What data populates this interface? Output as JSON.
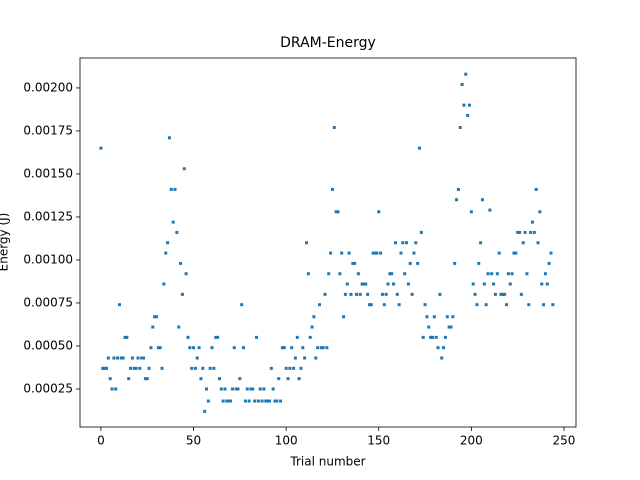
{
  "chart_data": {
    "type": "scatter",
    "title": "DRAM-Energy",
    "x_label": "Trial number",
    "y_label": "Energy (J)",
    "color": "#1f77b4",
    "xlim": [
      -11.3,
      256.5
    ],
    "ylim": [
      2.9e-05,
      0.002174
    ],
    "xticks": [
      0,
      50,
      100,
      150,
      200,
      250
    ],
    "yticks": [
      {
        "value": 0.00025,
        "label": "0.00025"
      },
      {
        "value": 0.0005,
        "label": "0.00050"
      },
      {
        "value": 0.00075,
        "label": "0.00075"
      },
      {
        "value": 0.001,
        "label": "0.00100"
      },
      {
        "value": 0.00125,
        "label": "0.00125"
      },
      {
        "value": 0.0015,
        "label": "0.00150"
      },
      {
        "value": 0.00175,
        "label": "0.00175"
      },
      {
        "value": 0.002,
        "label": "0.00200"
      }
    ],
    "x": [
      0,
      1,
      2,
      3,
      4,
      5,
      6,
      7,
      8,
      9,
      10,
      11,
      12,
      13,
      14,
      15,
      16,
      17,
      18,
      19,
      20,
      21,
      22,
      23,
      24,
      25,
      26,
      27,
      28,
      29,
      30,
      31,
      32,
      33,
      34,
      35,
      36,
      37,
      38,
      39,
      40,
      41,
      42,
      43,
      44,
      45,
      46,
      47,
      48,
      49,
      50,
      51,
      52,
      53,
      54,
      55,
      56,
      57,
      58,
      59,
      60,
      61,
      62,
      63,
      64,
      65,
      66,
      67,
      68,
      69,
      70,
      71,
      72,
      73,
      74,
      75,
      76,
      77,
      78,
      79,
      80,
      81,
      82,
      83,
      84,
      85,
      86,
      87,
      88,
      89,
      90,
      91,
      92,
      93,
      94,
      95,
      96,
      97,
      98,
      99,
      100,
      101,
      102,
      103,
      104,
      105,
      106,
      107,
      108,
      109,
      110,
      111,
      112,
      113,
      114,
      115,
      116,
      117,
      118,
      119,
      120,
      121,
      122,
      123,
      124,
      125,
      126,
      127,
      128,
      129,
      130,
      131,
      132,
      133,
      134,
      135,
      136,
      137,
      138,
      139,
      140,
      141,
      142,
      143,
      144,
      145,
      146,
      147,
      148,
      149,
      150,
      151,
      152,
      153,
      154,
      155,
      156,
      157,
      158,
      159,
      160,
      161,
      162,
      163,
      164,
      165,
      166,
      167,
      168,
      169,
      170,
      171,
      172,
      173,
      174,
      175,
      176,
      177,
      178,
      179,
      180,
      181,
      182,
      183,
      184,
      185,
      186,
      187,
      188,
      189,
      190,
      191,
      192,
      193,
      194,
      195,
      196,
      197,
      198,
      199,
      200,
      201,
      202,
      203,
      204,
      205,
      206,
      207,
      208,
      209,
      210,
      211,
      212,
      213,
      214,
      215,
      216,
      217,
      218,
      219,
      220,
      221,
      222,
      223,
      224,
      225,
      226,
      227,
      228,
      229,
      230,
      231,
      232,
      233,
      234,
      235,
      236,
      237,
      238,
      239,
      240,
      241,
      242,
      243,
      244
    ],
    "values": [
      0.00165,
      0.00037,
      0.00037,
      0.00037,
      0.00043,
      0.00031,
      0.00025,
      0.00043,
      0.00025,
      0.00043,
      0.00074,
      0.00043,
      0.00043,
      0.00055,
      0.00055,
      0.00031,
      0.00037,
      0.00043,
      0.00037,
      0.00037,
      0.00043,
      0.00037,
      0.00043,
      0.00043,
      0.00031,
      0.00031,
      0.00037,
      0.00049,
      0.00061,
      0.00067,
      0.00067,
      0.00049,
      0.00049,
      0.00037,
      0.00086,
      0.00104,
      0.0011,
      0.00171,
      0.00141,
      0.00122,
      0.00141,
      0.00116,
      0.00061,
      0.00098,
      0.0008,
      0.00153,
      0.00092,
      0.00055,
      0.00049,
      0.00037,
      0.00049,
      0.00037,
      0.00043,
      0.00049,
      0.00031,
      0.00037,
      0.00012,
      0.00025,
      0.00018,
      0.00037,
      0.00049,
      0.00037,
      0.00055,
      0.00055,
      0.00031,
      0.00025,
      0.00018,
      0.00025,
      0.00018,
      0.00018,
      0.00018,
      0.00025,
      0.00049,
      0.00025,
      0.00025,
      0.00031,
      0.00074,
      0.00049,
      0.00018,
      0.00025,
      0.00018,
      0.00025,
      0.00025,
      0.00018,
      0.00055,
      0.00018,
      0.00025,
      0.00018,
      0.00025,
      0.00018,
      0.00018,
      0.00018,
      0.00037,
      0.00025,
      0.00018,
      0.00018,
      0.00031,
      0.00018,
      0.00049,
      0.00049,
      0.00037,
      0.00031,
      0.00037,
      0.00049,
      0.00037,
      0.00043,
      0.00055,
      0.00031,
      0.00037,
      0.00049,
      0.00043,
      0.0011,
      0.00092,
      0.00055,
      0.00061,
      0.00067,
      0.00043,
      0.00049,
      0.00074,
      0.00049,
      0.00049,
      0.0008,
      0.00049,
      0.00092,
      0.00104,
      0.00141,
      0.00177,
      0.00128,
      0.00128,
      0.00092,
      0.00104,
      0.00067,
      0.0008,
      0.00086,
      0.00104,
      0.0008,
      0.00098,
      0.00098,
      0.0008,
      0.00092,
      0.0008,
      0.00086,
      0.00086,
      0.00086,
      0.0008,
      0.00074,
      0.00074,
      0.00104,
      0.00104,
      0.00104,
      0.00128,
      0.00104,
      0.0008,
      0.00074,
      0.0008,
      0.00086,
      0.00092,
      0.00092,
      0.00086,
      0.0011,
      0.0008,
      0.00074,
      0.00104,
      0.0011,
      0.00092,
      0.0011,
      0.00086,
      0.00098,
      0.0008,
      0.00104,
      0.0011,
      0.00098,
      0.00165,
      0.00116,
      0.00055,
      0.00074,
      0.00067,
      0.00061,
      0.00055,
      0.00055,
      0.00067,
      0.00055,
      0.00049,
      0.0008,
      0.00043,
      0.00049,
      0.00055,
      0.00067,
      0.00061,
      0.00061,
      0.00067,
      0.00098,
      0.00135,
      0.00141,
      0.00177,
      0.00202,
      0.0019,
      0.00208,
      0.00184,
      0.0019,
      0.00128,
      0.00086,
      0.0008,
      0.00074,
      0.00098,
      0.0011,
      0.00135,
      0.00086,
      0.00074,
      0.00092,
      0.00129,
      0.00092,
      0.00086,
      0.0008,
      0.00092,
      0.00104,
      0.0008,
      0.0008,
      0.0008,
      0.00074,
      0.00092,
      0.00086,
      0.00092,
      0.00104,
      0.00104,
      0.00116,
      0.00116,
      0.0008,
      0.0011,
      0.00116,
      0.00092,
      0.00074,
      0.00116,
      0.00122,
      0.00116,
      0.00141,
      0.0011,
      0.00128,
      0.00086,
      0.00074,
      0.00092,
      0.00086,
      0.00098,
      0.00104,
      0.00074
    ]
  }
}
